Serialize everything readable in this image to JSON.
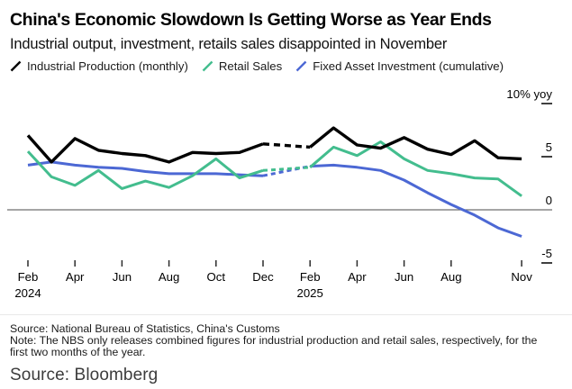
{
  "header": {
    "title": "China's Economic Slowdown Is Getting Worse as Year Ends",
    "subtitle": "Industrial output, investment, retails sales disappointed in November"
  },
  "chart_data": {
    "type": "line",
    "unit_label": "10% yoy",
    "y_axis": {
      "range": [
        -5,
        10
      ],
      "ticks": [
        {
          "v": 10,
          "label": "10% yoy"
        },
        {
          "v": 5,
          "label": "5"
        },
        {
          "v": 0,
          "label": "0"
        },
        {
          "v": -5,
          "label": "-5"
        }
      ]
    },
    "x_axis": {
      "ticks": [
        {
          "m": 0,
          "label": "Feb",
          "year": "2024"
        },
        {
          "m": 2,
          "label": "Apr"
        },
        {
          "m": 4,
          "label": "Jun"
        },
        {
          "m": 6,
          "label": "Aug"
        },
        {
          "m": 8,
          "label": "Oct"
        },
        {
          "m": 10,
          "label": "Dec"
        },
        {
          "m": 12,
          "label": "Feb",
          "year": "2025"
        },
        {
          "m": 14,
          "label": "Apr"
        },
        {
          "m": 16,
          "label": "Jun"
        },
        {
          "m": 18,
          "label": "Aug"
        },
        {
          "m": 21,
          "label": "Nov"
        }
      ]
    },
    "month_labels": [
      "Feb 2024",
      "Mar 2024",
      "Apr 2024",
      "May 2024",
      "Jun 2024",
      "Jul 2024",
      "Aug 2024",
      "Sep 2024",
      "Oct 2024",
      "Nov 2024",
      "Dec 2024",
      "Feb 2025",
      "Mar 2025",
      "Apr 2025",
      "May 2025",
      "Jun 2025",
      "Jul 2025",
      "Aug 2025",
      "Sep 2025",
      "Oct 2025",
      "Nov 2025"
    ],
    "month_indices": [
      0,
      1,
      2,
      3,
      4,
      5,
      6,
      7,
      8,
      9,
      10,
      12,
      13,
      14,
      15,
      16,
      17,
      18,
      19,
      20,
      21
    ],
    "dashed_between_month_indices": [
      10,
      12
    ],
    "series": [
      {
        "name": "Industrial Production (monthly)",
        "color": "#000000",
        "values": [
          7.0,
          4.5,
          6.7,
          5.6,
          5.3,
          5.1,
          4.5,
          5.4,
          5.3,
          5.4,
          6.2,
          5.9,
          7.7,
          6.1,
          5.8,
          6.8,
          5.7,
          5.2,
          6.5,
          4.9,
          4.8
        ]
      },
      {
        "name": "Retail Sales",
        "color": "#43bd8e",
        "values": [
          5.5,
          3.1,
          2.3,
          3.7,
          2.0,
          2.7,
          2.1,
          3.2,
          4.8,
          3.0,
          3.7,
          4.0,
          5.9,
          5.1,
          6.4,
          4.8,
          3.7,
          3.4,
          3.0,
          2.9,
          1.3
        ]
      },
      {
        "name": "Fixed Asset Investment (cumulative)",
        "color": "#4c68d4",
        "values": [
          4.2,
          4.5,
          4.2,
          4.0,
          3.9,
          3.6,
          3.4,
          3.4,
          3.4,
          3.3,
          3.2,
          4.1,
          4.2,
          4.0,
          3.7,
          2.8,
          1.6,
          0.5,
          -0.5,
          -1.7,
          -2.5
        ]
      }
    ]
  },
  "footer": {
    "source_line": "Source: National Bureau of Statistics, China's Customs",
    "note_line1": "Note: The NBS only releases combined figures for industrial production and retail sales, respectively, for the",
    "note_line2": "first two months of the year.",
    "bloomberg": "Source: Bloomberg"
  }
}
